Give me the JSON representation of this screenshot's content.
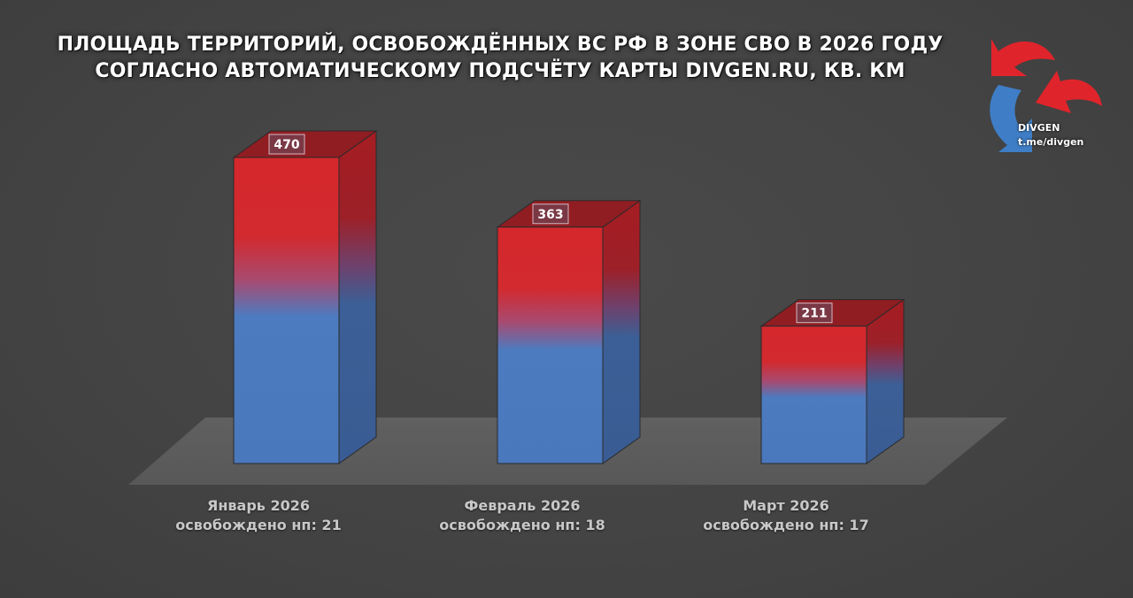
{
  "title_line1": "ПЛОЩАДЬ ТЕРРИТОРИЙ, ОСВОБОЖДЁННЫХ ВС РФ В ЗОНЕ СВО В 2026 ГОДУ",
  "title_line2": "СОГЛАСНО АВТОМАТИЧЕСКОМУ ПОДСЧЁТУ КАРТЫ DIVGEN.RU, КВ. КМ",
  "logo": {
    "name": "DIVGEN",
    "link": "t.me/divgen",
    "icon": "divgen-arrows-logo",
    "colors": {
      "red": "#e0242b",
      "blue": "#3f7ec6"
    }
  },
  "colors": {
    "background": "#454545",
    "bar_red": "#d42a2e",
    "bar_blue": "#4a7cc0",
    "floor": "#5e5e5e"
  },
  "chart_data": {
    "type": "bar",
    "title": "ПЛОЩАДЬ ТЕРРИТОРИЙ, ОСВОБОЖДЁННЫХ ВС РФ В ЗОНЕ СВО В 2026 ГОДУ СОГЛАСНО АВТОМАТИЧЕСКОМУ ПОДСЧЁТУ КАРТЫ DIVGEN.RU, КВ. КМ",
    "categories": [
      "Январь 2026",
      "Февраль 2026",
      "Март 2026"
    ],
    "subtitles": [
      "освобождено нп: 21",
      "освобождено нп: 18",
      "освобождено нп: 17"
    ],
    "values": [
      470,
      363,
      211
    ],
    "style": "3d-box",
    "grid": false,
    "legend": "none"
  }
}
